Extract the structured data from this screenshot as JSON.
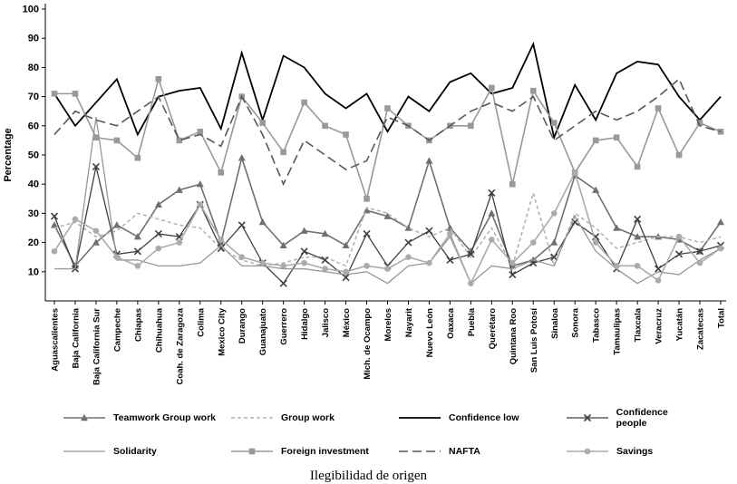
{
  "chart_data": {
    "type": "line",
    "title": "",
    "xlabel": "Ilegibilidad de origen",
    "ylabel": "Percentage",
    "ylim": [
      0,
      100
    ],
    "ytick_step": 10,
    "grid": false,
    "legend_position": "bottom",
    "categories": [
      "Aguascalientes",
      "Baja California",
      "Baja California Sur",
      "Campeche",
      "Chiapas",
      "Chihuahua",
      "Coah. de Zaragoza",
      "Colima",
      "Mexico City",
      "Durango",
      "Guanajuato",
      "Guerrero",
      "Hidalgo",
      "Jalisco",
      "México",
      "Mich. de Ocampo",
      "Morelos",
      "Nayarit",
      "Nuevo León",
      "Oaxaca",
      "Puebla",
      "Querétaro",
      "Quintana Roo",
      "San Luis Potosí",
      "Sinaloa",
      "Sonora",
      "Tabasco",
      "Tamaulipas",
      "Tlaxcala",
      "Veracruz",
      "Yucatán",
      "Zacatecas",
      "Total"
    ],
    "series": [
      {
        "name": "Teamwork  Group work",
        "color": "#707070",
        "dash": "",
        "marker": "triangle",
        "width": 1.6,
        "values": [
          26,
          12,
          20,
          26,
          22,
          33,
          38,
          40,
          20,
          49,
          27,
          19,
          24,
          23,
          19,
          31,
          29,
          25,
          48,
          25,
          17,
          30,
          12,
          14,
          20,
          43,
          38,
          25,
          22,
          22,
          21,
          17,
          27
        ]
      },
      {
        "name": "Group work",
        "color": "#b4b4b4",
        "dash": "4,3",
        "marker": "",
        "width": 1.6,
        "values": [
          25,
          27,
          22,
          24,
          30,
          28,
          26,
          25,
          18,
          14,
          12,
          13,
          15,
          15,
          12,
          32,
          30,
          25,
          22,
          25,
          15,
          25,
          12,
          37,
          12,
          30,
          25,
          18,
          20,
          22,
          22,
          20,
          22
        ]
      },
      {
        "name": "Confidence low",
        "color": "#000000",
        "dash": "",
        "marker": "",
        "width": 1.8,
        "values": [
          71,
          60,
          68,
          76,
          57,
          70,
          72,
          73,
          59,
          85,
          62,
          84,
          80,
          71,
          66,
          71,
          58,
          70,
          65,
          75,
          78,
          71,
          73,
          88,
          56,
          74,
          62,
          78,
          82,
          81,
          70,
          62,
          70
        ]
      },
      {
        "name": "Confidence people",
        "color": "#404040",
        "dash": "",
        "marker": "x",
        "width": 1.3,
        "values": [
          29,
          11,
          46,
          16,
          17,
          23,
          22,
          33,
          18,
          26,
          13,
          6,
          17,
          14,
          8,
          23,
          12,
          20,
          24,
          14,
          16,
          37,
          9,
          13,
          15,
          27,
          22,
          11,
          28,
          11,
          16,
          17,
          19
        ]
      },
      {
        "name": "Solidarity",
        "color": "#989898",
        "dash": "",
        "marker": "",
        "width": 1.3,
        "values": [
          11,
          11,
          63,
          14,
          14,
          12,
          12,
          13,
          19,
          12,
          12,
          11,
          11,
          10,
          9,
          10,
          6,
          12,
          13,
          22,
          6,
          12,
          11,
          14,
          12,
          29,
          17,
          11,
          6,
          10,
          9,
          14,
          18
        ]
      },
      {
        "name": "Foreign investment",
        "color": "#999999",
        "dash": "",
        "marker": "square",
        "width": 1.6,
        "values": [
          71,
          71,
          56,
          55,
          49,
          76,
          55,
          58,
          44,
          70,
          61,
          51,
          68,
          60,
          57,
          35,
          66,
          60,
          55,
          60,
          60,
          73,
          40,
          72,
          61,
          44,
          55,
          56,
          46,
          66,
          50,
          61,
          58
        ]
      },
      {
        "name": "NAFTA",
        "color": "#585858",
        "dash": "10,5",
        "marker": "",
        "width": 1.6,
        "values": [
          57,
          65,
          62,
          60,
          65,
          70,
          55,
          57,
          53,
          70,
          57,
          40,
          55,
          50,
          45,
          48,
          63,
          60,
          55,
          60,
          65,
          68,
          65,
          70,
          55,
          60,
          65,
          62,
          65,
          70,
          76,
          60,
          58
        ]
      },
      {
        "name": "Savings",
        "color": "#ababab",
        "dash": "",
        "marker": "circle",
        "width": 1.6,
        "values": [
          17,
          28,
          24,
          15,
          12,
          18,
          20,
          33,
          21,
          15,
          13,
          12,
          13,
          11,
          10,
          12,
          11,
          15,
          13,
          23,
          6,
          21,
          13,
          20,
          30,
          44,
          20,
          12,
          12,
          7,
          22,
          13,
          18
        ]
      }
    ]
  }
}
